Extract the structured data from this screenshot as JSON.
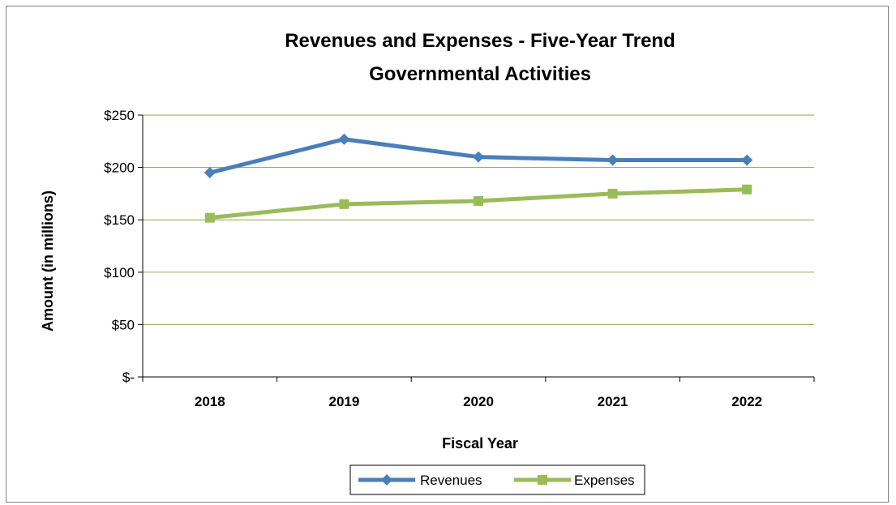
{
  "chart_data": {
    "type": "line",
    "title": "Revenues and Expenses - Five-Year Trend",
    "subtitle": "Governmental Activities",
    "xlabel": "Fiscal Year",
    "ylabel": "Amount (in millions)",
    "categories": [
      "2018",
      "2019",
      "2020",
      "2021",
      "2022"
    ],
    "ylim": [
      0,
      250
    ],
    "yticks": [
      0,
      50,
      100,
      150,
      200,
      250
    ],
    "ytick_labels": [
      "$-",
      "$50",
      "$100",
      "$150",
      "$200",
      "$250"
    ],
    "grid": true,
    "legend_position": "bottom",
    "series": [
      {
        "name": "Revenues",
        "color": "#4a7ebb",
        "marker": "diamond",
        "values": [
          195,
          227,
          210,
          207,
          207
        ]
      },
      {
        "name": "Expenses",
        "color": "#9bbb59",
        "marker": "square",
        "values": [
          152,
          165,
          168,
          175,
          179
        ]
      }
    ],
    "gridline_color": "#8aa84a"
  }
}
